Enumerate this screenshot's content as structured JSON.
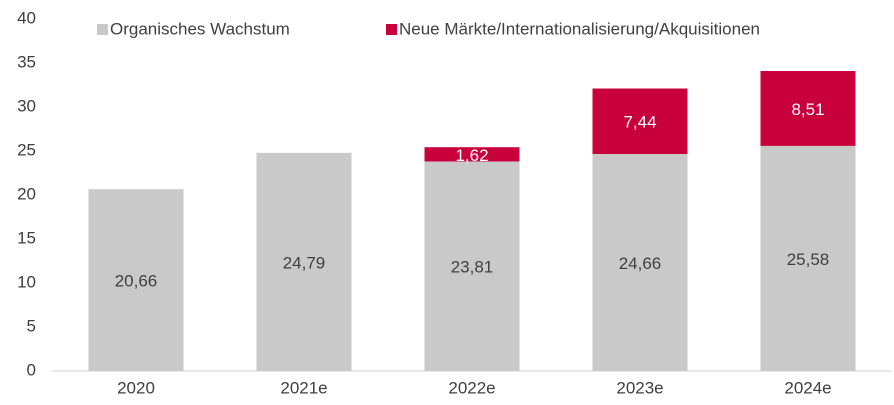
{
  "chart_data": {
    "type": "stacked_bar",
    "categories": [
      "2020",
      "2021e",
      "2022e",
      "2023e",
      "2024e"
    ],
    "series": [
      {
        "name": "Organisches Wachstum",
        "color": "#c9c9c9",
        "values": [
          20.66,
          24.79,
          23.81,
          24.66,
          25.58
        ],
        "value_labels": [
          "20,66",
          "24,79",
          "23,81",
          "24,66",
          "25,58"
        ]
      },
      {
        "name": "Neue Märkte/Internationalisierung/Akquisitionen",
        "color": "#c8003c",
        "values": [
          null,
          null,
          1.62,
          7.44,
          8.51
        ],
        "value_labels": [
          null,
          null,
          "1,62",
          "7,44",
          "8,51"
        ]
      }
    ],
    "ylim": [
      0,
      40
    ],
    "yticks": [
      0,
      5,
      10,
      15,
      20,
      25,
      30,
      35,
      40
    ],
    "legend": "top"
  }
}
